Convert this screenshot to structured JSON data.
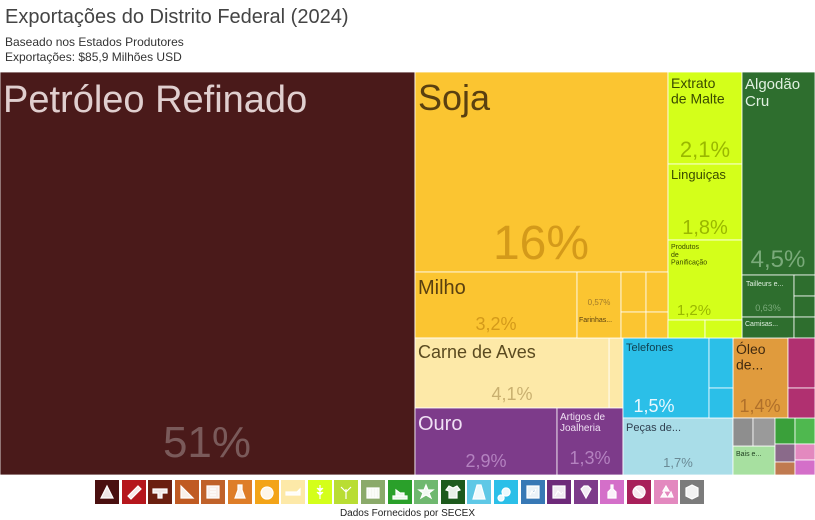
{
  "header": {
    "title": "Exportações do Distrito Federal (2024)",
    "subtitle": "Baseado nos Estados Produtores",
    "exports": "Exportações: $85,9 Milhões USD"
  },
  "footer": {
    "source": "Dados Fornecidos por SECEX"
  },
  "colors": {
    "petroleo": "#4a1a1a",
    "soja": "#fbc531",
    "milho": "#fbc531",
    "carne": "#fde9a8",
    "ouro": "#7d3b8a",
    "extrato": "#d4ff1a",
    "algodao": "#2e6e2e",
    "telefones": "#2bbfe8",
    "pecas": "#a9dde8",
    "oleo": "#e09b3d",
    "grey": "#8e8e8e",
    "pink": "#b03070"
  },
  "icons": [
    {
      "name": "mineral-icon",
      "color": "#4a1010"
    },
    {
      "name": "chemical-icon",
      "color": "#b5161c"
    },
    {
      "name": "metal-icon",
      "color": "#6b1f10"
    },
    {
      "name": "leather-icon",
      "color": "#c05a22"
    },
    {
      "name": "textile-roll-icon",
      "color": "#c0622a"
    },
    {
      "name": "flask-icon",
      "color": "#de7d28"
    },
    {
      "name": "fruit-icon",
      "color": "#f3a418"
    },
    {
      "name": "animal-icon",
      "color": "#fde9a8"
    },
    {
      "name": "grain-icon",
      "color": "#d4ff1a"
    },
    {
      "name": "plant-icon",
      "color": "#b9dd33"
    },
    {
      "name": "stone-icon",
      "color": "#8aaa6a"
    },
    {
      "name": "footwear-icon",
      "color": "#2aa02a"
    },
    {
      "name": "star-icon",
      "color": "#6fb86f"
    },
    {
      "name": "clothing-icon",
      "color": "#1d5a1d"
    },
    {
      "name": "road-icon",
      "color": "#5fc8e6"
    },
    {
      "name": "machinery-icon",
      "color": "#2bbfe8"
    },
    {
      "name": "instrument-icon",
      "color": "#3778b5"
    },
    {
      "name": "picture-icon",
      "color": "#6e2a7a"
    },
    {
      "name": "diamond-icon",
      "color": "#7d3b8a"
    },
    {
      "name": "bottle-icon",
      "color": "#d46fc9"
    },
    {
      "name": "no-entry-icon",
      "color": "#a8205a"
    },
    {
      "name": "recycle-icon",
      "color": "#e389bf"
    },
    {
      "name": "misc-icon",
      "color": "#7b7b7b"
    }
  ],
  "chart_data": {
    "type": "treemap",
    "title": "Exportações do Distrito Federal (2024)",
    "total": "$85,9 Milhões USD",
    "items": [
      {
        "label": "Petróleo Refinado",
        "share": "51%",
        "value": 51,
        "color": "#4a1a1a"
      },
      {
        "label": "Soja",
        "share": "16%",
        "value": 16,
        "color": "#fbc531"
      },
      {
        "label": "Milho",
        "share": "3,2%",
        "value": 3.2,
        "color": "#fbc531"
      },
      {
        "label": "Farinhas...",
        "share": "0,57%",
        "value": 0.57,
        "color": "#fbc531"
      },
      {
        "label": "Carne de Aves",
        "share": "4,1%",
        "value": 4.1,
        "color": "#fde9a8"
      },
      {
        "label": "Ouro",
        "share": "2,9%",
        "value": 2.9,
        "color": "#7d3b8a"
      },
      {
        "label": "Artigos de Joalheria",
        "share": "1,3%",
        "value": 1.3,
        "color": "#7d3b8a"
      },
      {
        "label": "Extrato de Malte",
        "share": "2,1%",
        "value": 2.1,
        "color": "#d4ff1a"
      },
      {
        "label": "Linguiças",
        "share": "1,8%",
        "value": 1.8,
        "color": "#d4ff1a"
      },
      {
        "label": "Produtos de Panificação",
        "share": "1,2%",
        "value": 1.2,
        "color": "#d4ff1a"
      },
      {
        "label": "Algodão Cru",
        "share": "4,5%",
        "value": 4.5,
        "color": "#2e6e2e"
      },
      {
        "label": "Tailleurs e...",
        "share": "0,63%",
        "value": 0.63,
        "color": "#2e6e2e"
      },
      {
        "label": "Camisas...",
        "share": "",
        "value": 0.3,
        "color": "#2e6e2e"
      },
      {
        "label": "Telefones",
        "share": "1,5%",
        "value": 1.5,
        "color": "#2bbfe8"
      },
      {
        "label": "Peças de...",
        "share": "1,7%",
        "value": 1.7,
        "color": "#a9dde8"
      },
      {
        "label": "Óleo de...",
        "share": "1,4%",
        "value": 1.4,
        "color": "#e09b3d"
      },
      {
        "label": "Bais e...",
        "share": "",
        "value": 0.4,
        "color": "#a7e0a0"
      }
    ]
  }
}
